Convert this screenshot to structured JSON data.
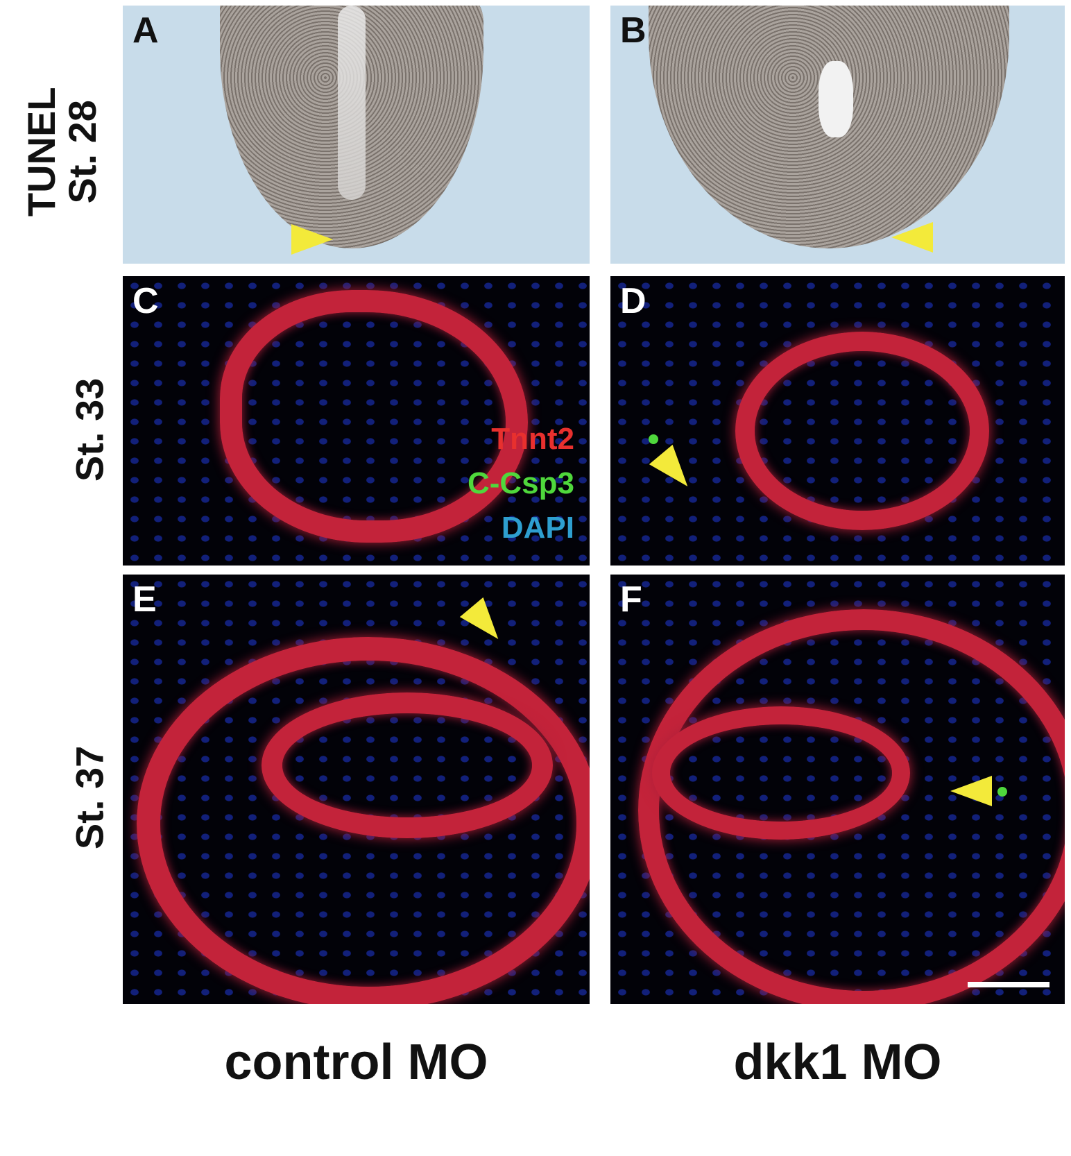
{
  "row_labels": {
    "row1_line1": "TUNEL",
    "row1_line2": "St. 28",
    "row2": "St. 33",
    "row3": "St. 37"
  },
  "column_labels": {
    "left": "control MO",
    "right": "dkk1 MO"
  },
  "panels": {
    "A": "A",
    "B": "B",
    "C": "C",
    "D": "D",
    "E": "E",
    "F": "F"
  },
  "legend": {
    "tnnt2": "Tnnt2",
    "csp3": "C-Csp3",
    "dapi": "DAPI"
  },
  "colors": {
    "tnnt2": "#e8302e",
    "csp3": "#4fd83c",
    "dapi": "#2e9fd0",
    "arrowhead": "#f3ea3a",
    "brightfield_bg": "#c8dcea"
  }
}
